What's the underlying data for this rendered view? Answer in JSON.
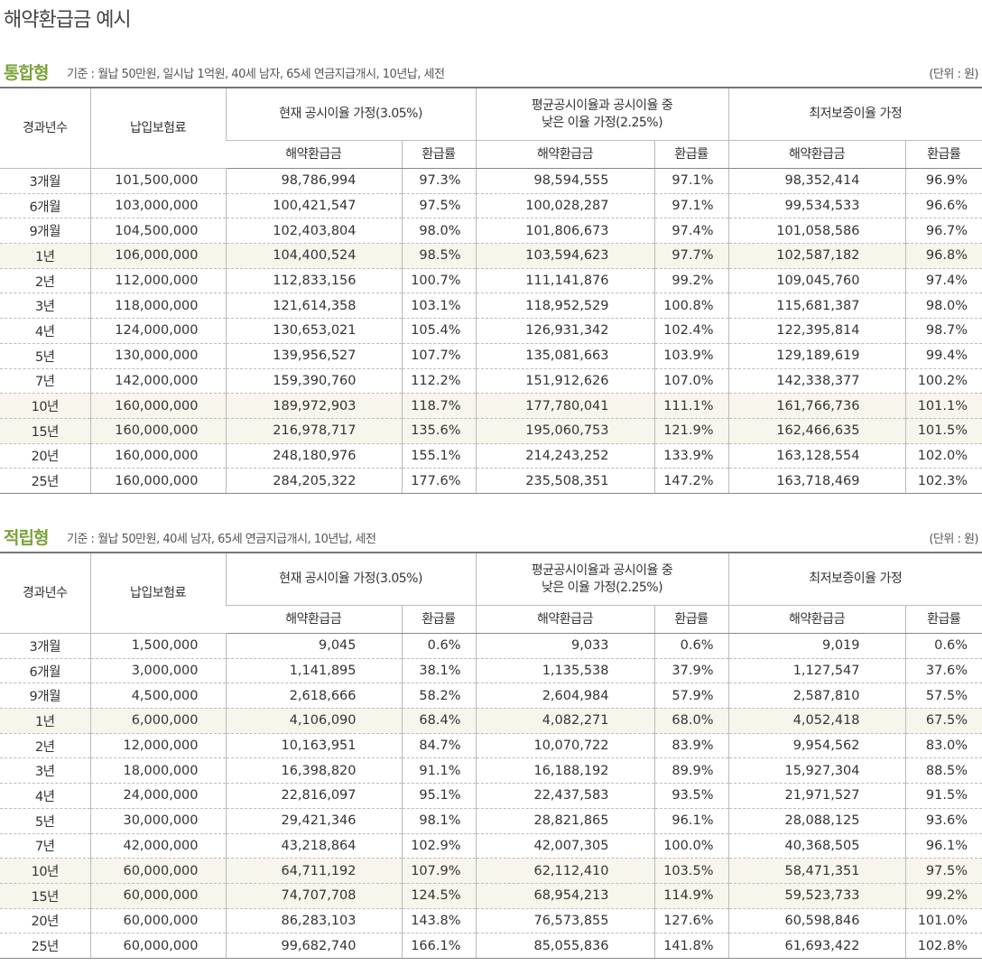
{
  "header": {
    "title": "해약환급금 예시"
  },
  "sections": [
    {
      "name": "통합형",
      "basis": "기준 : 월납 50만원, 일시납 1억원, 40세 남자, 65세 연금지급개시, 10년납, 세전",
      "unit": "(단위 : 원)",
      "columns": [
        "경과년수",
        "납입보험료",
        "현재 공시이율 가정(3.05%)",
        [
          "평균공시이율과 공시이율 중",
          "낮은 이율 가정(2.25%)"
        ],
        "최저보증이율 가정"
      ],
      "sub_columns": [
        "해약환급금",
        "환급률",
        "해약환급금",
        "환급률",
        "해약환급금",
        "환급률"
      ],
      "rows": [
        [
          "3개월",
          "101,500,000",
          "98,786,994",
          "97.3%",
          "98,594,555",
          "97.1%",
          "98,352,414",
          "96.9%"
        ],
        [
          "6개월",
          "103,000,000",
          "100,421,547",
          "97.5%",
          "100,028,287",
          "97.1%",
          "99,534,533",
          "96.6%"
        ],
        [
          "9개월",
          "104,500,000",
          "102,403,804",
          "98.0%",
          "101,806,673",
          "97.4%",
          "101,058,586",
          "96.7%"
        ],
        [
          "1년",
          "106,000,000",
          "104,400,524",
          "98.5%",
          "103,594,623",
          "97.7%",
          "102,587,182",
          "96.8%"
        ],
        [
          "2년",
          "112,000,000",
          "112,833,156",
          "100.7%",
          "111,141,876",
          "99.2%",
          "109,045,760",
          "97.4%"
        ],
        [
          "3년",
          "118,000,000",
          "121,614,358",
          "103.1%",
          "118,952,529",
          "100.8%",
          "115,681,387",
          "98.0%"
        ],
        [
          "4년",
          "124,000,000",
          "130,653,021",
          "105.4%",
          "126,931,342",
          "102.4%",
          "122,395,814",
          "98.7%"
        ],
        [
          "5년",
          "130,000,000",
          "139,956,527",
          "107.7%",
          "135,081,663",
          "103.9%",
          "129,189,619",
          "99.4%"
        ],
        [
          "7년",
          "142,000,000",
          "159,390,760",
          "112.2%",
          "151,912,626",
          "107.0%",
          "142,338,377",
          "100.2%"
        ],
        [
          "10년",
          "160,000,000",
          "189,972,903",
          "118.7%",
          "177,780,041",
          "111.1%",
          "161,766,736",
          "101.1%"
        ],
        [
          "15년",
          "160,000,000",
          "216,978,717",
          "135.6%",
          "195,060,753",
          "121.9%",
          "162,466,635",
          "101.5%"
        ],
        [
          "20년",
          "160,000,000",
          "248,180,976",
          "155.1%",
          "214,243,252",
          "133.9%",
          "163,128,554",
          "102.0%"
        ],
        [
          "25년",
          "160,000,000",
          "284,205,322",
          "177.6%",
          "235,508,351",
          "147.2%",
          "163,718,469",
          "102.3%"
        ]
      ]
    },
    {
      "name": "적립형",
      "basis": "기준 : 월납 50만원, 40세 남자, 65세 연금지급개시, 10년납, 세전",
      "unit": "(단위 : 원)",
      "columns": [
        "경과년수",
        "납입보험료",
        "현재 공시이율 가정(3.05%)",
        [
          "평균공시이율과 공시이율 중",
          "낮은 이율 가정(2.25%)"
        ],
        "최저보증이율 가정"
      ],
      "sub_columns": [
        "해약환급금",
        "환급률",
        "해약환급금",
        "환급률",
        "해약환급금",
        "환급률"
      ],
      "rows": [
        [
          "3개월",
          "1,500,000",
          "9,045",
          "0.6%",
          "9,033",
          "0.6%",
          "9,019",
          "0.6%"
        ],
        [
          "6개월",
          "3,000,000",
          "1,141,895",
          "38.1%",
          "1,135,538",
          "37.9%",
          "1,127,547",
          "37.6%"
        ],
        [
          "9개월",
          "4,500,000",
          "2,618,666",
          "58.2%",
          "2,604,984",
          "57.9%",
          "2,587,810",
          "57.5%"
        ],
        [
          "1년",
          "6,000,000",
          "4,106,090",
          "68.4%",
          "4,082,271",
          "68.0%",
          "4,052,418",
          "67.5%"
        ],
        [
          "2년",
          "12,000,000",
          "10,163,951",
          "84.7%",
          "10,070,722",
          "83.9%",
          "9,954,562",
          "83.0%"
        ],
        [
          "3년",
          "18,000,000",
          "16,398,820",
          "91.1%",
          "16,188,192",
          "89.9%",
          "15,927,304",
          "88.5%"
        ],
        [
          "4년",
          "24,000,000",
          "22,816,097",
          "95.1%",
          "22,437,583",
          "93.5%",
          "21,971,527",
          "91.5%"
        ],
        [
          "5년",
          "30,000,000",
          "29,421,346",
          "98.1%",
          "28,821,865",
          "96.1%",
          "28,088,125",
          "93.6%"
        ],
        [
          "7년",
          "42,000,000",
          "43,218,864",
          "102.9%",
          "42,007,305",
          "100.0%",
          "40,368,505",
          "96.1%"
        ],
        [
          "10년",
          "60,000,000",
          "64,711,192",
          "107.9%",
          "62,112,410",
          "103.5%",
          "58,471,351",
          "97.5%"
        ],
        [
          "15년",
          "60,000,000",
          "74,707,708",
          "124.5%",
          "68,954,213",
          "114.9%",
          "59,523,733",
          "99.2%"
        ],
        [
          "20년",
          "60,000,000",
          "86,283,103",
          "143.8%",
          "76,573,855",
          "127.6%",
          "60,598,846",
          "101.0%"
        ],
        [
          "25년",
          "60,000,000",
          "99,682,740",
          "166.1%",
          "85,055,836",
          "141.8%",
          "61,693,422",
          "102.8%"
        ]
      ]
    }
  ]
}
